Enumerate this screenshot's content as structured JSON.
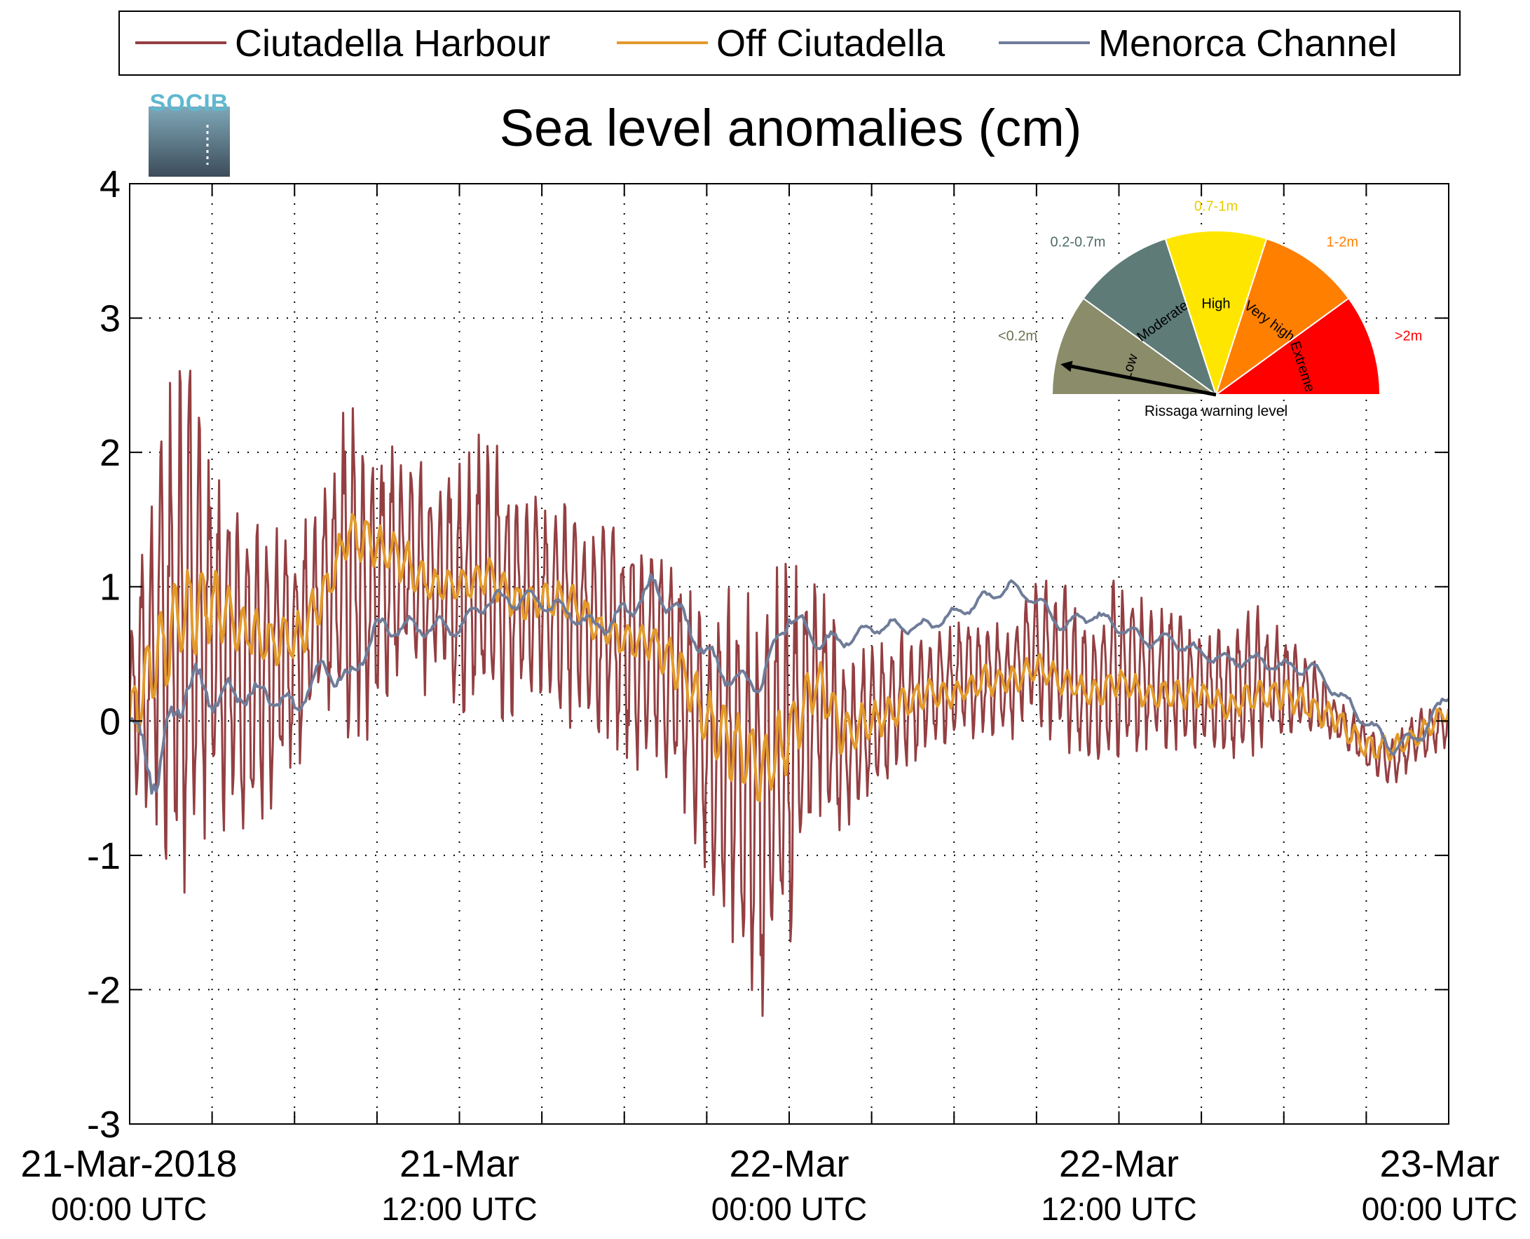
{
  "logo": {
    "text": "SOCIB"
  },
  "colors": {
    "harbour": "#943f42",
    "off": "#e39a2a",
    "channel": "#6f7c99",
    "gauge_low": "#8a8c6a",
    "gauge_moderate": "#5e7b78",
    "gauge_high": "#ffe600",
    "gauge_veryhigh": "#ff7f00",
    "gauge_extreme": "#ff0000"
  },
  "gauge": {
    "caption": "Rissaga warning level",
    "needle_level": "Low",
    "segments": [
      {
        "key": "low",
        "label": "Low",
        "range": "<0.2m",
        "color": "#8a8c6a",
        "range_color": "#6e7050"
      },
      {
        "key": "moderate",
        "label": "Moderate",
        "range": "0.2-0.7m",
        "color": "#5e7b78",
        "range_color": "#4e6b68"
      },
      {
        "key": "high",
        "label": "High",
        "range": "0.7-1m",
        "color": "#ffe600",
        "range_color": "#e8cc00"
      },
      {
        "key": "veryhigh",
        "label": "Very high",
        "range": "1-2m",
        "color": "#ff7f00",
        "range_color": "#ff7f00"
      },
      {
        "key": "extreme",
        "label": "Extreme",
        "range": ">2m",
        "color": "#ff0000",
        "range_color": "#ff0000"
      }
    ]
  },
  "chart_data": {
    "type": "line",
    "title": "Sea level anomalies (cm)",
    "xlabel": "",
    "ylabel": "",
    "x_unit": "UTC time",
    "xlim": [
      "2018-03-21 00:00",
      "2018-03-23 00:00"
    ],
    "ylim": [
      -3,
      4
    ],
    "yticks": [
      -3,
      -2,
      -1,
      0,
      1,
      2,
      3,
      4
    ],
    "x_minor_step_hours": 3,
    "xtick_labels": [
      {
        "t": "2018-03-21 00:00",
        "line1": "21-Mar-2018",
        "line2": "00:00 UTC"
      },
      {
        "t": "2018-03-21 12:00",
        "line1": "21-Mar",
        "line2": "12:00 UTC"
      },
      {
        "t": "2018-03-22 00:00",
        "line1": "22-Mar",
        "line2": "00:00 UTC"
      },
      {
        "t": "2018-03-22 12:00",
        "line1": "22-Mar",
        "line2": "12:00 UTC"
      },
      {
        "t": "2018-03-23 00:00",
        "line1": "23-Mar",
        "line2": "00:00 UTC"
      }
    ],
    "grid": true,
    "legend_position": "top",
    "series": [
      {
        "name": "Ciutadella Harbour",
        "color": "#943f42",
        "x": [
          "2018-03-21 00:00",
          "2018-03-21 01:00",
          "2018-03-21 02:00",
          "2018-03-21 03:00",
          "2018-03-21 04:00",
          "2018-03-21 05:00",
          "2018-03-21 06:00",
          "2018-03-21 07:00",
          "2018-03-21 08:00",
          "2018-03-21 09:00",
          "2018-03-21 10:00",
          "2018-03-21 11:00",
          "2018-03-21 12:00",
          "2018-03-21 13:00",
          "2018-03-21 14:00",
          "2018-03-21 15:00",
          "2018-03-21 16:00",
          "2018-03-21 17:00",
          "2018-03-21 18:00",
          "2018-03-21 19:00",
          "2018-03-21 20:00",
          "2018-03-21 21:00",
          "2018-03-21 22:00",
          "2018-03-21 23:00",
          "2018-03-22 00:00",
          "2018-03-22 01:00",
          "2018-03-22 02:00",
          "2018-03-22 03:00",
          "2018-03-22 04:00",
          "2018-03-22 05:00",
          "2018-03-22 06:00",
          "2018-03-22 07:00",
          "2018-03-22 08:00",
          "2018-03-22 09:00",
          "2018-03-22 10:00",
          "2018-03-22 11:00",
          "2018-03-22 12:00",
          "2018-03-22 13:00",
          "2018-03-22 14:00",
          "2018-03-22 15:00",
          "2018-03-22 16:00",
          "2018-03-22 17:00",
          "2018-03-22 18:00",
          "2018-03-22 19:00",
          "2018-03-22 20:00",
          "2018-03-22 21:00",
          "2018-03-22 22:00",
          "2018-03-22 23:00",
          "2018-03-23 00:00"
        ],
        "mid": [
          0.1,
          0.6,
          0.8,
          0.6,
          0.4,
          0.5,
          0.5,
          0.9,
          1.1,
          1.0,
          1.2,
          1.0,
          1.0,
          1.1,
          0.9,
          0.9,
          0.8,
          0.7,
          0.6,
          0.5,
          0.3,
          -0.2,
          -0.4,
          -0.6,
          -0.3,
          0.2,
          -0.2,
          0.0,
          0.1,
          0.2,
          0.3,
          0.3,
          0.3,
          0.5,
          0.4,
          0.2,
          0.4,
          0.3,
          0.3,
          0.2,
          0.2,
          0.3,
          0.3,
          0.2,
          0.0,
          -0.2,
          -0.3,
          -0.1,
          0.0
        ],
        "amp": [
          0.5,
          1.8,
          2.3,
          1.5,
          1.4,
          1.3,
          1.0,
          0.8,
          1.5,
          1.1,
          0.9,
          0.9,
          1.0,
          1.2,
          0.9,
          0.8,
          0.9,
          0.8,
          1.0,
          0.9,
          0.9,
          1.0,
          1.5,
          1.8,
          1.6,
          1.0,
          0.8,
          0.6,
          0.6,
          0.5,
          0.5,
          0.5,
          0.5,
          0.6,
          0.7,
          0.6,
          0.8,
          0.6,
          0.6,
          0.5,
          0.5,
          0.6,
          0.4,
          0.3,
          0.2,
          0.2,
          0.2,
          0.2,
          0.2
        ]
      },
      {
        "name": "Off Ciutadella",
        "color": "#e39a2a",
        "x": [
          "2018-03-21 00:00",
          "2018-03-21 01:00",
          "2018-03-21 02:00",
          "2018-03-21 03:00",
          "2018-03-21 04:00",
          "2018-03-21 05:00",
          "2018-03-21 06:00",
          "2018-03-21 07:00",
          "2018-03-21 08:00",
          "2018-03-21 09:00",
          "2018-03-21 10:00",
          "2018-03-21 11:00",
          "2018-03-21 12:00",
          "2018-03-21 13:00",
          "2018-03-21 14:00",
          "2018-03-21 15:00",
          "2018-03-21 16:00",
          "2018-03-21 17:00",
          "2018-03-21 18:00",
          "2018-03-21 19:00",
          "2018-03-21 20:00",
          "2018-03-21 21:00",
          "2018-03-21 22:00",
          "2018-03-21 23:00",
          "2018-03-22 00:00",
          "2018-03-22 01:00",
          "2018-03-22 02:00",
          "2018-03-22 03:00",
          "2018-03-22 04:00",
          "2018-03-22 05:00",
          "2018-03-22 06:00",
          "2018-03-22 07:00",
          "2018-03-22 08:00",
          "2018-03-22 09:00",
          "2018-03-22 10:00",
          "2018-03-22 11:00",
          "2018-03-22 12:00",
          "2018-03-22 13:00",
          "2018-03-22 14:00",
          "2018-03-22 15:00",
          "2018-03-22 16:00",
          "2018-03-22 17:00",
          "2018-03-22 18:00",
          "2018-03-22 19:00",
          "2018-03-22 20:00",
          "2018-03-22 21:00",
          "2018-03-22 22:00",
          "2018-03-22 23:00",
          "2018-03-23 00:00"
        ],
        "mid": [
          0.0,
          0.5,
          0.8,
          0.9,
          0.7,
          0.6,
          0.6,
          0.9,
          1.4,
          1.3,
          1.2,
          1.0,
          1.0,
          1.1,
          0.9,
          0.9,
          0.9,
          0.7,
          0.6,
          0.6,
          0.4,
          0.0,
          -0.2,
          -0.4,
          -0.1,
          0.3,
          -0.1,
          0.0,
          0.1,
          0.2,
          0.2,
          0.3,
          0.3,
          0.4,
          0.3,
          0.2,
          0.3,
          0.2,
          0.2,
          0.2,
          0.1,
          0.2,
          0.2,
          0.1,
          0.0,
          -0.2,
          -0.2,
          -0.1,
          0.1
        ],
        "amp": [
          0.3,
          0.4,
          0.4,
          0.3,
          0.2,
          0.2,
          0.2,
          0.2,
          0.2,
          0.2,
          0.2,
          0.15,
          0.15,
          0.15,
          0.15,
          0.15,
          0.15,
          0.15,
          0.15,
          0.15,
          0.2,
          0.25,
          0.3,
          0.35,
          0.3,
          0.2,
          0.2,
          0.15,
          0.15,
          0.12,
          0.12,
          0.12,
          0.12,
          0.12,
          0.12,
          0.12,
          0.12,
          0.12,
          0.12,
          0.12,
          0.12,
          0.12,
          0.12,
          0.12,
          0.1,
          0.1,
          0.1,
          0.1,
          0.1
        ]
      },
      {
        "name": "Menorca Channel",
        "color": "#6f7c99",
        "x": [
          "2018-03-21 00:00",
          "2018-03-21 01:00",
          "2018-03-21 02:00",
          "2018-03-21 03:00",
          "2018-03-21 04:00",
          "2018-03-21 05:00",
          "2018-03-21 06:00",
          "2018-03-21 07:00",
          "2018-03-21 08:00",
          "2018-03-21 09:00",
          "2018-03-21 10:00",
          "2018-03-21 11:00",
          "2018-03-21 12:00",
          "2018-03-21 13:00",
          "2018-03-21 14:00",
          "2018-03-21 15:00",
          "2018-03-21 16:00",
          "2018-03-21 17:00",
          "2018-03-21 18:00",
          "2018-03-21 19:00",
          "2018-03-21 20:00",
          "2018-03-21 21:00",
          "2018-03-21 22:00",
          "2018-03-21 23:00",
          "2018-03-22 00:00",
          "2018-03-22 01:00",
          "2018-03-22 02:00",
          "2018-03-22 03:00",
          "2018-03-22 04:00",
          "2018-03-22 05:00",
          "2018-03-22 06:00",
          "2018-03-22 07:00",
          "2018-03-22 08:00",
          "2018-03-22 09:00",
          "2018-03-22 10:00",
          "2018-03-22 11:00",
          "2018-03-22 12:00",
          "2018-03-22 13:00",
          "2018-03-22 14:00",
          "2018-03-22 15:00",
          "2018-03-22 16:00",
          "2018-03-22 17:00",
          "2018-03-22 18:00",
          "2018-03-22 19:00",
          "2018-03-22 20:00",
          "2018-03-22 21:00",
          "2018-03-22 22:00",
          "2018-03-22 23:00",
          "2018-03-23 00:00"
        ],
        "mid": [
          0.0,
          -0.4,
          0.3,
          0.2,
          0.2,
          0.2,
          0.1,
          0.4,
          0.3,
          0.7,
          0.7,
          0.7,
          0.7,
          0.9,
          0.9,
          0.9,
          0.8,
          0.7,
          0.8,
          1.0,
          0.8,
          0.5,
          0.3,
          0.3,
          0.8,
          0.6,
          0.6,
          0.7,
          0.7,
          0.7,
          0.8,
          0.9,
          1.0,
          0.9,
          0.7,
          0.8,
          0.7,
          0.6,
          0.6,
          0.5,
          0.45,
          0.45,
          0.4,
          0.4,
          0.2,
          0.0,
          -0.2,
          -0.1,
          0.2
        ],
        "amp": [
          0.1,
          0.25,
          0.2,
          0.15,
          0.1,
          0.1,
          0.1,
          0.1,
          0.1,
          0.08,
          0.08,
          0.08,
          0.08,
          0.08,
          0.08,
          0.08,
          0.08,
          0.08,
          0.1,
          0.1,
          0.1,
          0.1,
          0.1,
          0.1,
          0.1,
          0.08,
          0.06,
          0.06,
          0.06,
          0.06,
          0.06,
          0.06,
          0.06,
          0.06,
          0.06,
          0.06,
          0.06,
          0.06,
          0.06,
          0.06,
          0.06,
          0.06,
          0.06,
          0.06,
          0.06,
          0.06,
          0.06,
          0.06,
          0.06
        ]
      }
    ]
  }
}
